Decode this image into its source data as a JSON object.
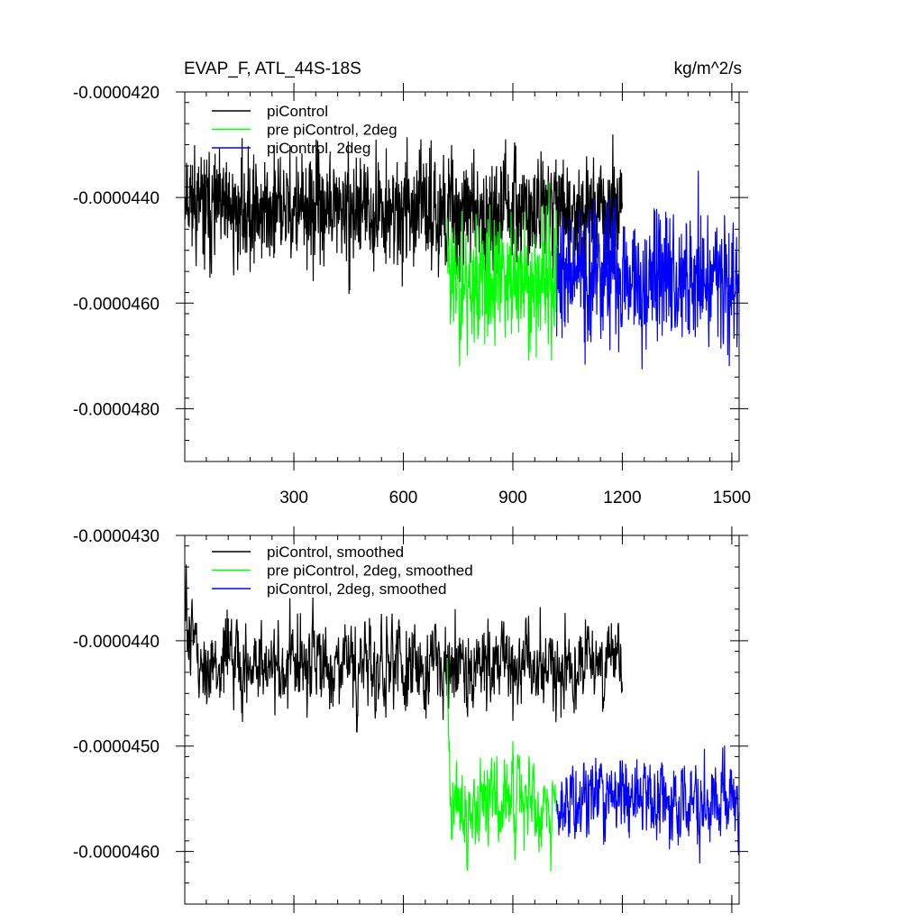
{
  "chart_data": [
    {
      "type": "line",
      "title_left": "EVAP_F, ATL_44S-18S",
      "title_right": "kg/m^2/s",
      "xlim": [
        1,
        1520
      ],
      "ylim": [
        -4.9e-05,
        -4.2e-05
      ],
      "x_ticks": [
        300,
        600,
        900,
        1200,
        1500
      ],
      "y_ticks": [
        -4.2e-05,
        -4.4e-05,
        -4.6e-05,
        -4.8e-05
      ],
      "y_tick_labels": [
        "-0.0000420",
        "-0.0000440",
        "-0.0000460",
        "-0.0000480"
      ],
      "x_tick_labels_shown": true,
      "grid": false,
      "legend_position": "top-left",
      "series": [
        {
          "name": "piControl",
          "color": "#000000",
          "x_start": 1,
          "x_end": 1200,
          "mean": -4.425e-05,
          "spread": 9e-07,
          "start_level": -4.38e-05,
          "seed": 11
        },
        {
          "name": "pre piControl, 2deg",
          "color": "#00ff00",
          "x_start": 720,
          "x_end": 1020,
          "mean": -4.56e-05,
          "spread": 1.1e-06,
          "start_level": -4.46e-05,
          "seed": 23
        },
        {
          "name": "piControl, 2deg",
          "color": "#0000ff",
          "x_start": 1020,
          "x_end": 1520,
          "mean": -4.55e-05,
          "spread": 1.1e-06,
          "start_level": -4.52e-05,
          "seed": 37
        }
      ]
    },
    {
      "type": "line",
      "title_left": "",
      "title_right": "",
      "xlim": [
        1,
        1520
      ],
      "ylim": [
        -4.65e-05,
        -4.3e-05
      ],
      "x_ticks": [
        300,
        600,
        900,
        1200,
        1500
      ],
      "y_ticks": [
        -4.3e-05,
        -4.4e-05,
        -4.5e-05,
        -4.6e-05
      ],
      "y_tick_labels": [
        "-0.0000430",
        "-0.0000440",
        "-0.0000450",
        "-0.0000460"
      ],
      "x_tick_labels_shown": false,
      "grid": false,
      "legend_position": "top-left",
      "series": [
        {
          "name": "piControl, smoothed",
          "color": "#000000",
          "x_start": 1,
          "x_end": 1200,
          "mean": -4.425e-05,
          "spread": 4.5e-07,
          "start_level": -4.37e-05,
          "seed": 51
        },
        {
          "name": "pre piControl, 2deg, smoothed",
          "color": "#00ff00",
          "x_start": 720,
          "x_end": 1020,
          "mean": -4.55e-05,
          "spread": 4.5e-07,
          "start_level": -4.45e-05,
          "seed": 63
        },
        {
          "name": "piControl, 2deg, smoothed",
          "color": "#0000ff",
          "x_start": 1020,
          "x_end": 1520,
          "mean": -4.55e-05,
          "spread": 4.5e-07,
          "start_level": -4.55e-05,
          "seed": 79
        }
      ]
    }
  ]
}
